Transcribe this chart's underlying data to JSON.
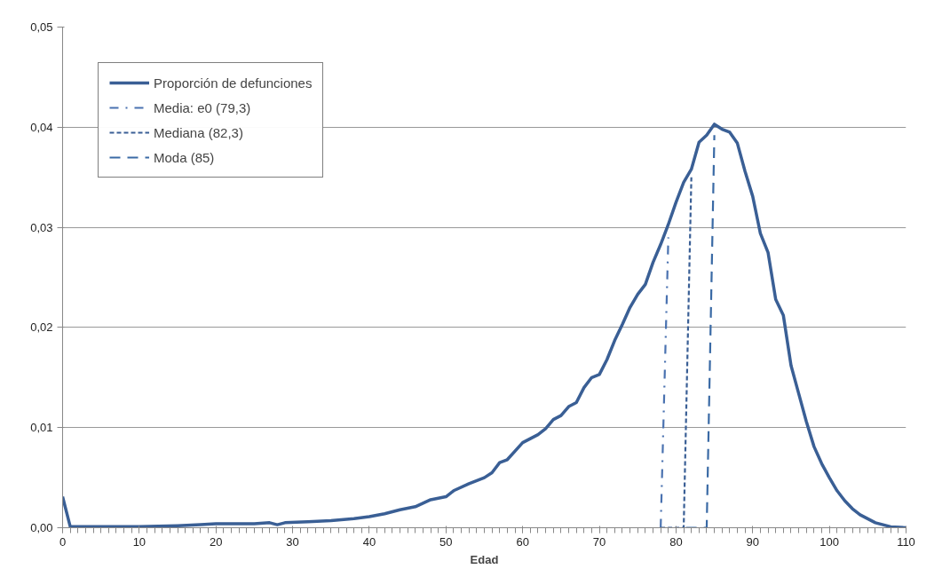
{
  "chart_data": {
    "type": "line",
    "xlabel": "Edad",
    "xlim": [
      0,
      110
    ],
    "xticks": [
      0,
      10,
      20,
      30,
      40,
      50,
      60,
      70,
      80,
      90,
      100,
      110
    ],
    "ylim": [
      0,
      0.05
    ],
    "yticks": [
      {
        "value": 0,
        "label": "0,00"
      },
      {
        "value": 0.01,
        "label": "0,01"
      },
      {
        "value": 0.02,
        "label": "0,02"
      },
      {
        "value": 0.03,
        "label": "0,03"
      },
      {
        "value": 0.04,
        "label": "0,04"
      },
      {
        "value": 0.05,
        "label": "0,05"
      }
    ],
    "grid": "y",
    "legend": "top left",
    "marker": "none",
    "series": [
      {
        "name": "Proporción de defunciones",
        "color": "#3a5f95",
        "line_style": "solid",
        "x": [
          0,
          1,
          2,
          5,
          10,
          15,
          18,
          20,
          25,
          27,
          28,
          29,
          32,
          35,
          38,
          40,
          42,
          44,
          46,
          48,
          50,
          51,
          53,
          55,
          56,
          57,
          58,
          60,
          61,
          62,
          63,
          64,
          65,
          66,
          67,
          68,
          69,
          70,
          71,
          72,
          73,
          74,
          75,
          76,
          77,
          78,
          79,
          80,
          81,
          82,
          83,
          84,
          85,
          86,
          87,
          88,
          89,
          90,
          91,
          92,
          93,
          94,
          95,
          96,
          97,
          98,
          99,
          100,
          101,
          102,
          103,
          104,
          106,
          108,
          110
        ],
        "values": [
          0.0031,
          0.0001,
          0.0001,
          0.0001,
          0.0001,
          0.0002,
          0.0003,
          0.0004,
          0.0004,
          0.0005,
          0.0003,
          0.0005,
          0.0006,
          0.0007,
          0.0009,
          0.0011,
          0.0014,
          0.0018,
          0.0021,
          0.0028,
          0.0031,
          0.0037,
          0.0044,
          0.005,
          0.0055,
          0.0065,
          0.0068,
          0.0085,
          0.0089,
          0.0093,
          0.0099,
          0.0108,
          0.0112,
          0.0121,
          0.0125,
          0.014,
          0.015,
          0.0153,
          0.0168,
          0.0187,
          0.0203,
          0.022,
          0.0233,
          0.0243,
          0.0265,
          0.0283,
          0.0303,
          0.0325,
          0.0345,
          0.0358,
          0.0385,
          0.0392,
          0.0403,
          0.0398,
          0.0395,
          0.0384,
          0.0356,
          0.0331,
          0.0294,
          0.0275,
          0.0228,
          0.0212,
          0.0162,
          0.0134,
          0.0106,
          0.0081,
          0.0064,
          0.005,
          0.0037,
          0.0027,
          0.0019,
          0.0013,
          0.0005,
          0.0001,
          0
        ]
      },
      {
        "name": "Media: e0 (79,3)",
        "color": "#4a72b0",
        "line_style": "dashdot",
        "x": [
          78,
          79
        ],
        "values": [
          0,
          0.029
        ]
      },
      {
        "name": "Mediana (82,3)",
        "color": "#3a5f95",
        "line_style": "dotted",
        "x": [
          78,
          81,
          82
        ],
        "values": [
          0,
          0,
          0.035
        ]
      },
      {
        "name": "Moda (85)",
        "color": "#3a6aa5",
        "line_style": "dashed",
        "x": [
          81.3,
          84,
          85
        ],
        "values": [
          0,
          0,
          0.0392
        ]
      }
    ]
  }
}
